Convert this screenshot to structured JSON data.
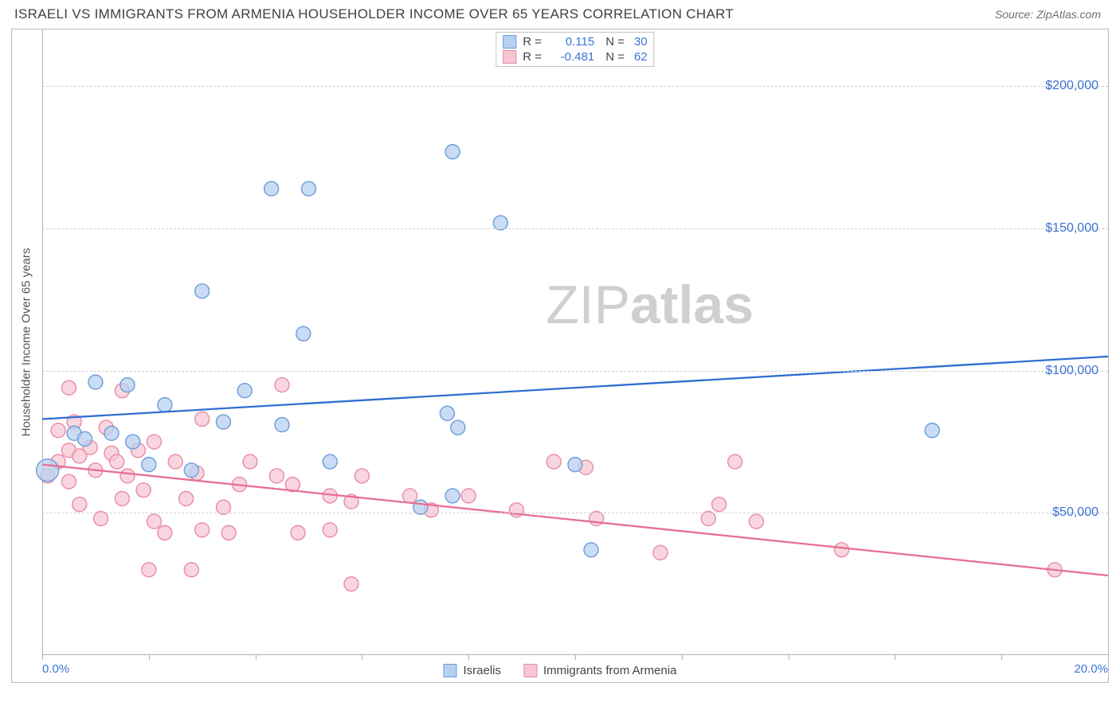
{
  "header": {
    "title": "ISRAELI VS IMMIGRANTS FROM ARMENIA HOUSEHOLDER INCOME OVER 65 YEARS CORRELATION CHART",
    "source_label": "Source:",
    "source_value": "ZipAtlas.com"
  },
  "chart": {
    "type": "scatter",
    "ylabel": "Householder Income Over 65 years",
    "xlim": [
      0,
      20
    ],
    "ylim": [
      0,
      220000
    ],
    "xtick_positions": [
      0,
      2,
      4,
      6,
      8,
      10,
      12,
      14,
      16,
      18,
      20
    ],
    "xtick_labels": {
      "0": "0.0%",
      "20": "20.0%"
    },
    "ytick_positions": [
      50000,
      100000,
      150000,
      200000
    ],
    "ytick_labels": [
      "$50,000",
      "$100,000",
      "$150,000",
      "$200,000"
    ],
    "grid_color": "#d0d0d0",
    "background_color": "#ffffff",
    "axis_color": "#b0b0b0",
    "tick_label_color": "#3a72d4",
    "ylabel_color": "#555555",
    "title_color": "#404040",
    "title_fontsize": 17,
    "label_fontsize": 15,
    "tick_fontsize": 16,
    "watermark": {
      "text_thin": "ZIP",
      "text_bold": "atlas",
      "color": "#cfcfcf",
      "fontsize": 68
    },
    "series": [
      {
        "name": "Israelis",
        "marker_fill": "#b8d0ef",
        "marker_stroke": "#6a9bdc",
        "marker_opacity": 0.75,
        "marker_radius": 9,
        "line_color": "#2f6fd0",
        "line_width": 2.3,
        "R": "0.115",
        "N": "30",
        "trend": {
          "x1": 0,
          "y1": 83000,
          "x2": 20,
          "y2": 105000
        },
        "points": [
          {
            "x": 0.1,
            "y": 65000,
            "r": 14
          },
          {
            "x": 0.6,
            "y": 78000
          },
          {
            "x": 0.8,
            "y": 76000
          },
          {
            "x": 1.0,
            "y": 96000
          },
          {
            "x": 1.3,
            "y": 78000
          },
          {
            "x": 1.6,
            "y": 95000
          },
          {
            "x": 1.7,
            "y": 75000
          },
          {
            "x": 2.0,
            "y": 67000
          },
          {
            "x": 2.3,
            "y": 88000
          },
          {
            "x": 2.8,
            "y": 65000
          },
          {
            "x": 3.0,
            "y": 128000
          },
          {
            "x": 3.4,
            "y": 82000
          },
          {
            "x": 3.8,
            "y": 93000
          },
          {
            "x": 4.3,
            "y": 164000
          },
          {
            "x": 4.5,
            "y": 81000
          },
          {
            "x": 4.9,
            "y": 113000
          },
          {
            "x": 5.0,
            "y": 164000
          },
          {
            "x": 5.4,
            "y": 68000
          },
          {
            "x": 7.1,
            "y": 52000
          },
          {
            "x": 7.6,
            "y": 85000
          },
          {
            "x": 7.7,
            "y": 177000
          },
          {
            "x": 7.7,
            "y": 56000
          },
          {
            "x": 7.8,
            "y": 80000
          },
          {
            "x": 8.6,
            "y": 152000
          },
          {
            "x": 10.0,
            "y": 67000
          },
          {
            "x": 10.3,
            "y": 37000
          },
          {
            "x": 16.7,
            "y": 79000
          }
        ]
      },
      {
        "name": "Immigrants from Armenia",
        "marker_fill": "#f6c6d2",
        "marker_stroke": "#e98aa4",
        "marker_opacity": 0.72,
        "marker_radius": 9,
        "line_color": "#e76f94",
        "line_width": 2.3,
        "R": "-0.481",
        "N": "62",
        "trend": {
          "x1": 0,
          "y1": 67000,
          "x2": 20,
          "y2": 28000
        },
        "points": [
          {
            "x": 0.1,
            "y": 63000
          },
          {
            "x": 0.3,
            "y": 79000
          },
          {
            "x": 0.3,
            "y": 68000
          },
          {
            "x": 0.5,
            "y": 94000
          },
          {
            "x": 0.5,
            "y": 72000
          },
          {
            "x": 0.5,
            "y": 61000
          },
          {
            "x": 0.6,
            "y": 82000
          },
          {
            "x": 0.7,
            "y": 70000
          },
          {
            "x": 0.7,
            "y": 53000
          },
          {
            "x": 0.9,
            "y": 73000
          },
          {
            "x": 1.0,
            "y": 65000
          },
          {
            "x": 1.1,
            "y": 48000
          },
          {
            "x": 1.2,
            "y": 80000
          },
          {
            "x": 1.3,
            "y": 71000
          },
          {
            "x": 1.4,
            "y": 68000
          },
          {
            "x": 1.5,
            "y": 93000
          },
          {
            "x": 1.5,
            "y": 55000
          },
          {
            "x": 1.6,
            "y": 63000
          },
          {
            "x": 1.8,
            "y": 72000
          },
          {
            "x": 1.9,
            "y": 58000
          },
          {
            "x": 2.0,
            "y": 30000
          },
          {
            "x": 2.1,
            "y": 47000
          },
          {
            "x": 2.1,
            "y": 75000
          },
          {
            "x": 2.3,
            "y": 43000
          },
          {
            "x": 2.5,
            "y": 68000
          },
          {
            "x": 2.7,
            "y": 55000
          },
          {
            "x": 2.8,
            "y": 30000
          },
          {
            "x": 2.9,
            "y": 64000
          },
          {
            "x": 3.0,
            "y": 44000
          },
          {
            "x": 3.0,
            "y": 83000
          },
          {
            "x": 3.4,
            "y": 52000
          },
          {
            "x": 3.5,
            "y": 43000
          },
          {
            "x": 3.7,
            "y": 60000
          },
          {
            "x": 3.9,
            "y": 68000
          },
          {
            "x": 4.4,
            "y": 63000
          },
          {
            "x": 4.5,
            "y": 95000
          },
          {
            "x": 4.7,
            "y": 60000
          },
          {
            "x": 4.8,
            "y": 43000
          },
          {
            "x": 5.4,
            "y": 56000
          },
          {
            "x": 5.4,
            "y": 44000
          },
          {
            "x": 5.8,
            "y": 25000
          },
          {
            "x": 5.8,
            "y": 54000
          },
          {
            "x": 6.0,
            "y": 63000
          },
          {
            "x": 6.9,
            "y": 56000
          },
          {
            "x": 7.3,
            "y": 51000
          },
          {
            "x": 8.0,
            "y": 56000
          },
          {
            "x": 8.9,
            "y": 51000
          },
          {
            "x": 9.6,
            "y": 68000
          },
          {
            "x": 10.2,
            "y": 66000
          },
          {
            "x": 10.4,
            "y": 48000
          },
          {
            "x": 11.6,
            "y": 36000
          },
          {
            "x": 12.5,
            "y": 48000
          },
          {
            "x": 12.7,
            "y": 53000
          },
          {
            "x": 13.0,
            "y": 68000
          },
          {
            "x": 13.4,
            "y": 47000
          },
          {
            "x": 15.0,
            "y": 37000
          },
          {
            "x": 19.0,
            "y": 30000
          }
        ]
      }
    ],
    "legend_bottom": [
      {
        "label": "Israelis",
        "fill": "#b8d0ef",
        "stroke": "#6a9bdc"
      },
      {
        "label": "Immigrants from Armenia",
        "fill": "#f6c6d2",
        "stroke": "#e98aa4"
      }
    ]
  }
}
